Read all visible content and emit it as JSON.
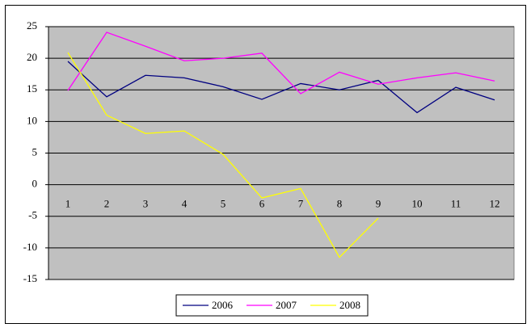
{
  "chart_data": {
    "type": "line",
    "categories": [
      "1",
      "2",
      "3",
      "4",
      "5",
      "6",
      "7",
      "8",
      "9",
      "10",
      "11",
      "12"
    ],
    "series": [
      {
        "name": "2006",
        "color": "#000080",
        "values": [
          19.5,
          13.9,
          17.3,
          16.9,
          15.5,
          13.5,
          16.0,
          15.0,
          16.5,
          11.4,
          15.4,
          13.4
        ]
      },
      {
        "name": "2007",
        "color": "#ff00ff",
        "values": [
          14.9,
          24.1,
          21.9,
          19.6,
          20.0,
          20.8,
          14.4,
          17.8,
          15.9,
          16.9,
          17.7,
          16.4
        ]
      },
      {
        "name": "2008",
        "color": "#ffff00",
        "values": [
          20.9,
          11.0,
          8.1,
          8.5,
          4.8,
          -2.1,
          -0.6,
          -11.5,
          -5.3,
          null,
          null,
          null
        ]
      }
    ],
    "ylim": [
      -15,
      25
    ],
    "yticks": [
      -15,
      -10,
      -5,
      0,
      5,
      10,
      15,
      20,
      25
    ],
    "grid": true,
    "plot_background": "#c0c0c0",
    "legend": "bottom"
  }
}
